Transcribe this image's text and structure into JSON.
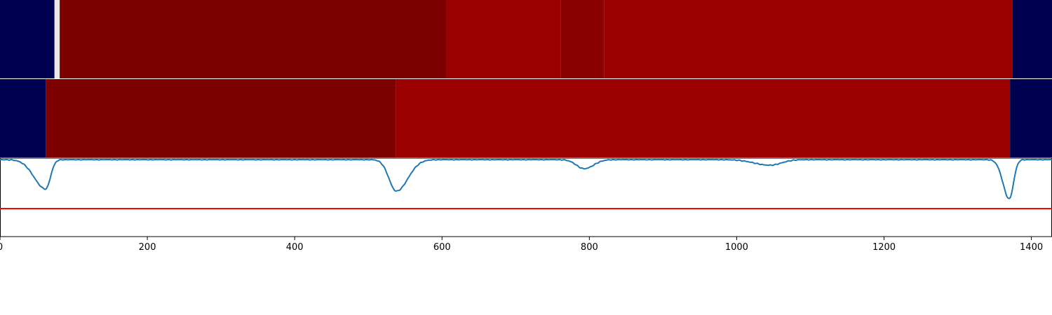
{
  "chart_data": {
    "type": "heatmap",
    "xlim": [
      0,
      1428
    ],
    "x_ticks": [
      0,
      200,
      400,
      600,
      800,
      1000,
      1200,
      1400
    ],
    "x_tick_labels": [
      "0",
      "200",
      "400",
      "600",
      "800",
      "1000",
      "1200",
      "1400"
    ],
    "colors": {
      "low": "#000050",
      "dark_red": "#7d0000",
      "mid_dark_red": "#8b0000",
      "red": "#9b0000",
      "light": "#f0e6e6",
      "signal_line": "#1f77b4",
      "threshold_line": "#ff0000"
    },
    "tracks": [
      {
        "segments": [
          {
            "start": 0,
            "end": 74,
            "color": "low"
          },
          {
            "start": 74,
            "end": 81,
            "color": "light"
          },
          {
            "start": 81,
            "end": 606,
            "color": "dark_red"
          },
          {
            "start": 606,
            "end": 761,
            "color": "red"
          },
          {
            "start": 761,
            "end": 820,
            "color": "mid_dark_red"
          },
          {
            "start": 820,
            "end": 1374,
            "color": "red"
          },
          {
            "start": 1374,
            "end": 1428,
            "color": "low"
          }
        ]
      },
      {
        "segments": [
          {
            "start": 0,
            "end": 62,
            "color": "low"
          },
          {
            "start": 62,
            "end": 537,
            "color": "dark_red"
          },
          {
            "start": 537,
            "end": 1371,
            "color": "red"
          },
          {
            "start": 1371,
            "end": 1428,
            "color": "low"
          }
        ]
      }
    ],
    "signal": {
      "ylim": [
        -1.1,
        0.02
      ],
      "threshold": -0.7,
      "dips": [
        {
          "center": 62,
          "depth": 0.42,
          "left_width": 22,
          "right_width": 9
        },
        {
          "center": 538,
          "depth": 0.45,
          "left_width": 14,
          "right_width": 22
        },
        {
          "center": 793,
          "depth": 0.13,
          "left_width": 15,
          "right_width": 18
        },
        {
          "center": 1045,
          "depth": 0.08,
          "left_width": 30,
          "right_width": 22
        },
        {
          "center": 1370,
          "depth": 0.56,
          "left_width": 12,
          "right_width": 8
        }
      ]
    }
  }
}
